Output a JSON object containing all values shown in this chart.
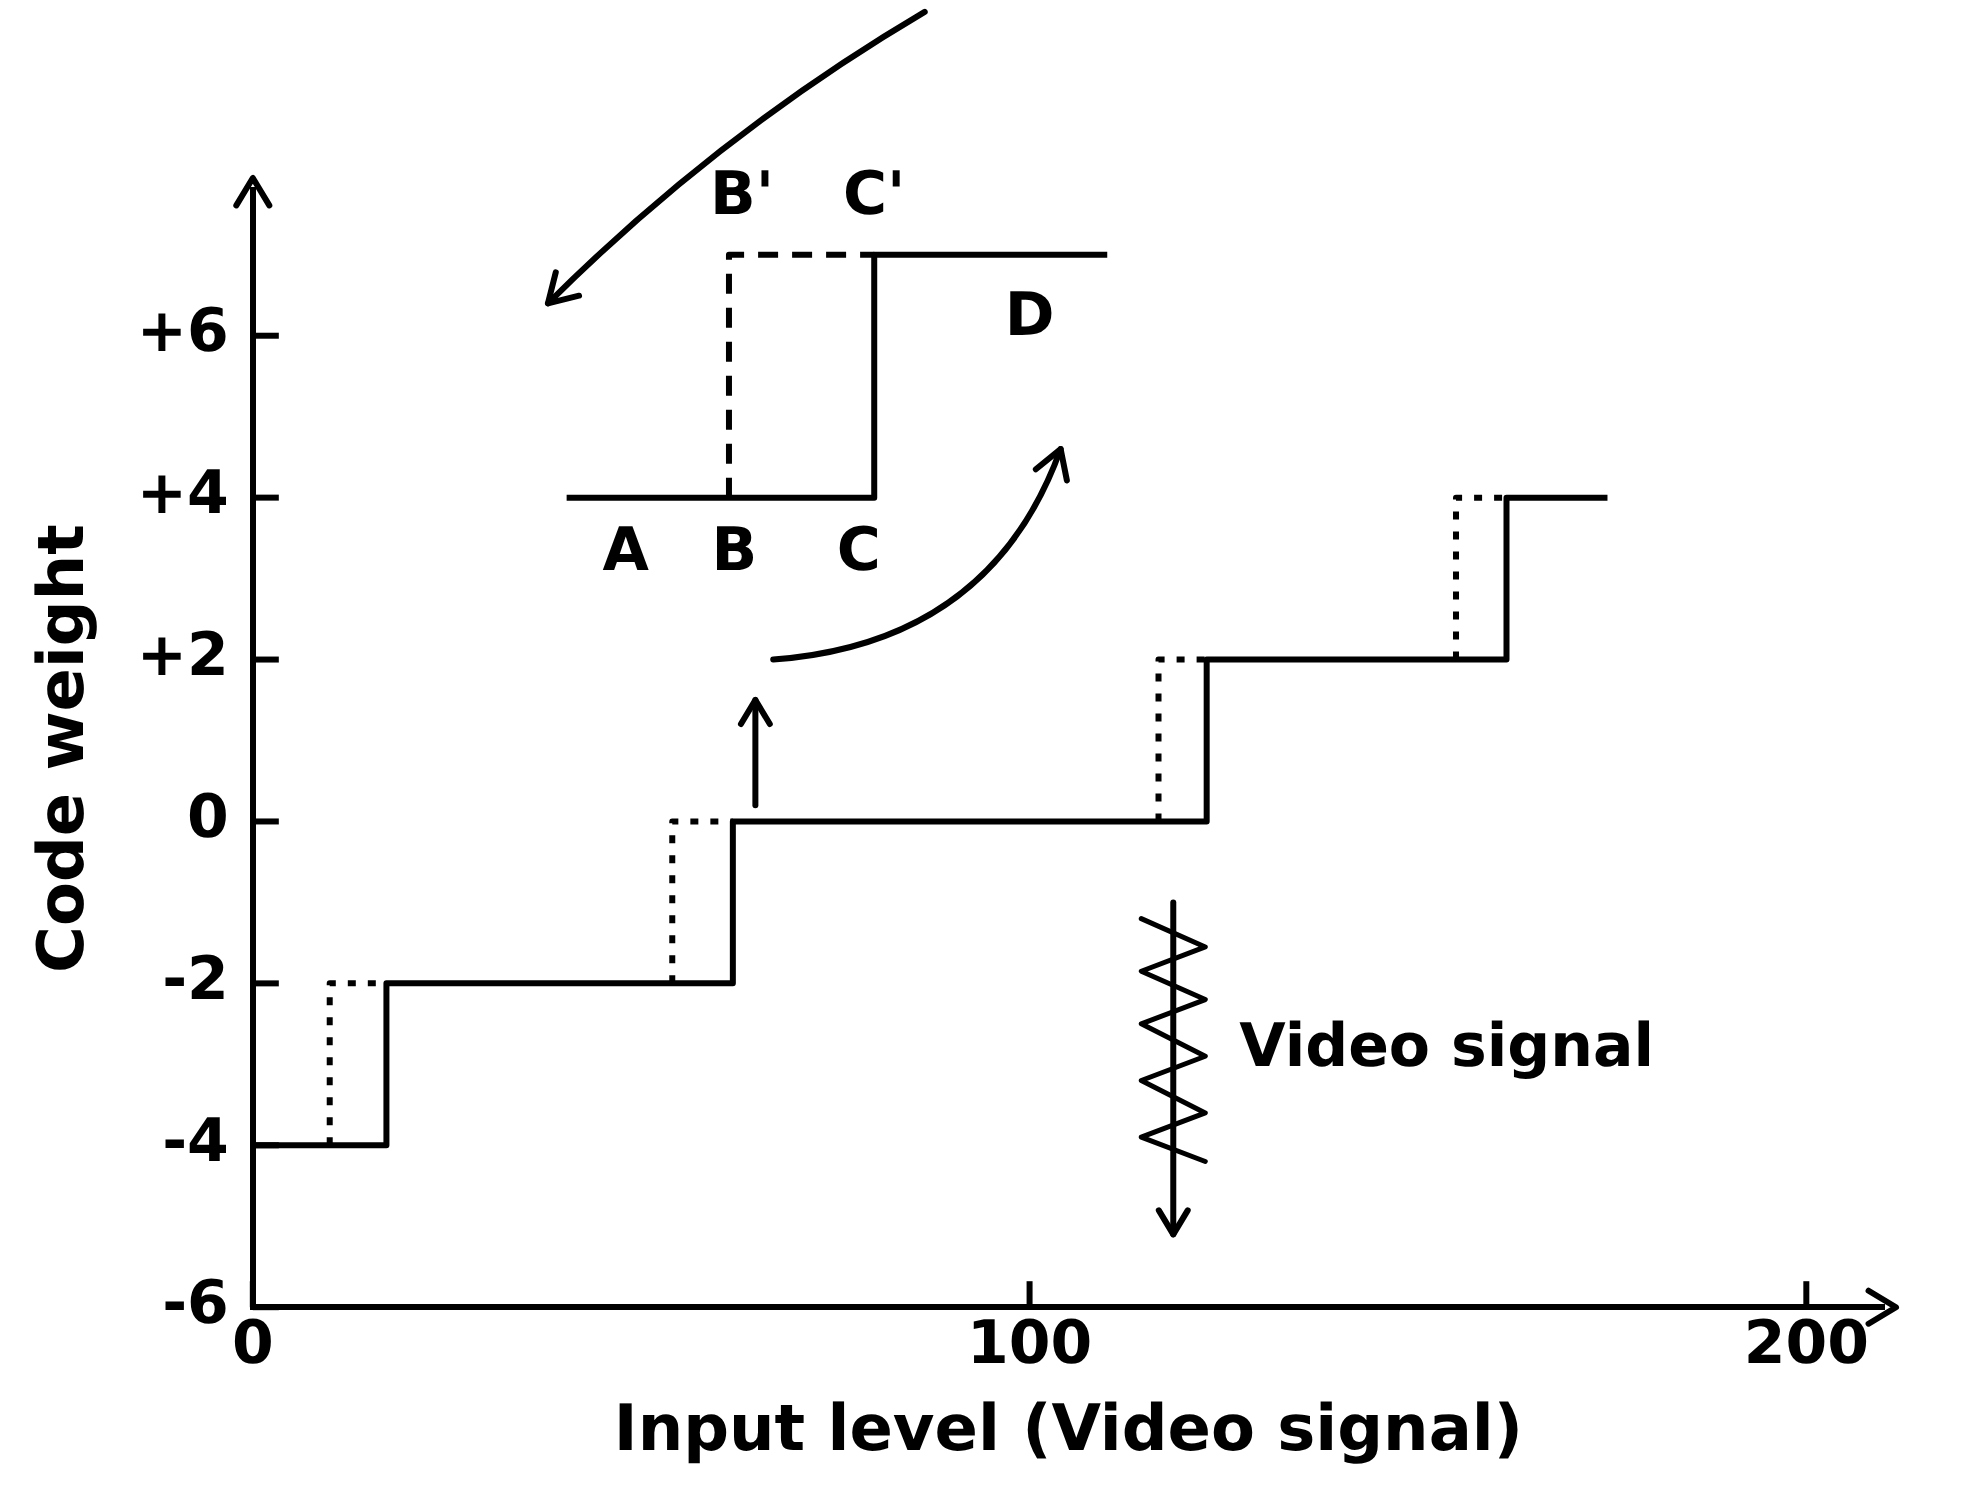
{
  "chart_data": {
    "type": "step",
    "xlabel": "Input level (Video signal)",
    "ylabel": "Code weight",
    "xlim": [
      0,
      210
    ],
    "xticks": [
      0,
      100,
      200
    ],
    "ylim": [
      -6,
      7.8
    ],
    "yticks": [
      {
        "value": 6,
        "label": "+6"
      },
      {
        "value": 4,
        "label": "+4"
      },
      {
        "value": 2,
        "label": "+2"
      },
      0,
      -2,
      -4,
      -6
    ],
    "grid": false,
    "legend": false,
    "series": [
      {
        "color": "#000000",
        "line_style": "solid",
        "x": [
          0,
          17.2,
          61.8,
          122.8,
          161.4,
          174.4
        ],
        "values": [
          -4,
          -2,
          0,
          2,
          4,
          4
        ]
      },
      {
        "color": "#000000",
        "line_style": "dotted",
        "x": [
          9.9,
          9.9,
          17.2
        ],
        "values": [
          -4,
          -2,
          -2
        ]
      },
      {
        "color": "#000000",
        "line_style": "dotted",
        "x": [
          54,
          54,
          61.8
        ],
        "values": [
          -2,
          0,
          0
        ]
      },
      {
        "color": "#000000",
        "line_style": "dotted",
        "x": [
          116.6,
          116.6,
          122.8
        ],
        "values": [
          0,
          2,
          2
        ]
      },
      {
        "color": "#000000",
        "line_style": "dotted",
        "x": [
          154.9,
          154.9,
          161.4
        ],
        "values": [
          2,
          4,
          4
        ]
      },
      {
        "color": "#000000",
        "line_style": "solid",
        "x": [
          40.4,
          80,
          110
        ],
        "values": [
          4,
          7,
          7
        ]
      },
      {
        "color": "#000000",
        "line_style": "dashed",
        "x": [
          61.3,
          61.3,
          80
        ],
        "values": [
          4,
          7,
          7
        ]
      }
    ],
    "annotations": [
      "A",
      "B",
      "C",
      "B'",
      "C'",
      "D",
      "Video signal"
    ]
  }
}
